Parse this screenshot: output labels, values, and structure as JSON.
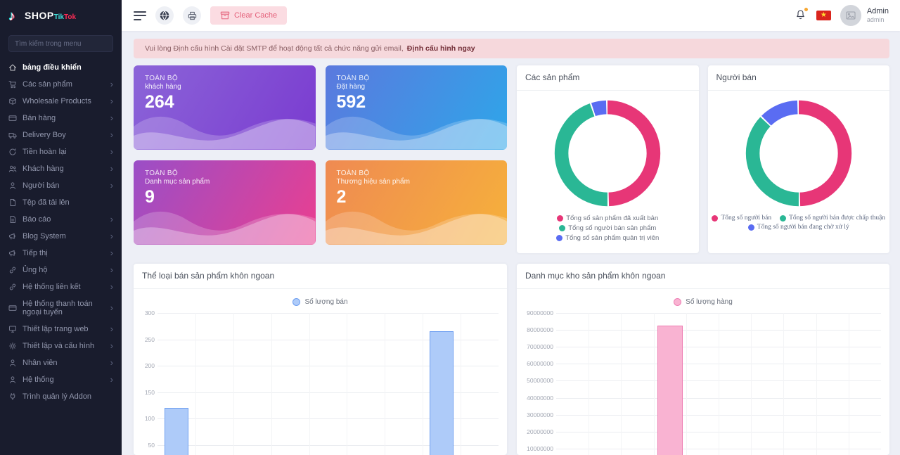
{
  "sidebar": {
    "logo": {
      "shop": "SHOP",
      "tik": "Tik",
      "tok": "Tok"
    },
    "search_placeholder": "Tìm kiếm trong menu",
    "items": [
      {
        "label": "bảng điều khiển",
        "icon": "home",
        "has_children": false,
        "active": true
      },
      {
        "label": "Các sản phẩm",
        "icon": "cart",
        "has_children": true,
        "active": false
      },
      {
        "label": "Wholesale Products",
        "icon": "box",
        "has_children": true,
        "active": false
      },
      {
        "label": "Bán hàng",
        "icon": "credit-card",
        "has_children": true,
        "active": false
      },
      {
        "label": "Delivery Boy",
        "icon": "truck",
        "has_children": true,
        "active": false
      },
      {
        "label": "Tiền hoàn lại",
        "icon": "refund",
        "has_children": true,
        "active": false
      },
      {
        "label": "Khách hàng",
        "icon": "users",
        "has_children": true,
        "active": false
      },
      {
        "label": "Người bán",
        "icon": "user",
        "has_children": true,
        "active": false
      },
      {
        "label": "Tệp đã tải lên",
        "icon": "file",
        "has_children": false,
        "active": false
      },
      {
        "label": "Báo cáo",
        "icon": "report",
        "has_children": true,
        "active": false
      },
      {
        "label": "Blog System",
        "icon": "megaphone",
        "has_children": true,
        "active": false
      },
      {
        "label": "Tiếp thị",
        "icon": "megaphone",
        "has_children": true,
        "active": false
      },
      {
        "label": "Ủng hộ",
        "icon": "link",
        "has_children": true,
        "active": false
      },
      {
        "label": "Hệ thống liên kết",
        "icon": "link",
        "has_children": true,
        "active": false
      },
      {
        "label": "Hệ thống thanh toán ngoại tuyến",
        "icon": "credit-card",
        "has_children": true,
        "active": false
      },
      {
        "label": "Thiết lập trang web",
        "icon": "monitor",
        "has_children": true,
        "active": false
      },
      {
        "label": "Thiết lập và cấu hình",
        "icon": "gear",
        "has_children": true,
        "active": false
      },
      {
        "label": "Nhân viên",
        "icon": "user",
        "has_children": true,
        "active": false
      },
      {
        "label": "Hệ thống",
        "icon": "user",
        "has_children": true,
        "active": false
      },
      {
        "label": "Trình quản lý Addon",
        "icon": "plug",
        "has_children": false,
        "active": false
      }
    ]
  },
  "topbar": {
    "clear_cache_label": "Clear Cache",
    "user": {
      "name": "Admin",
      "role": "admin"
    }
  },
  "alert": {
    "message": "Vui lòng Định cấu hình Cài đặt SMTP để hoạt động tất cả chức năng gửi email,",
    "action": "Định cấu hình ngay"
  },
  "stat_cards": [
    {
      "kicker": "TOÀN BỘ",
      "label": "khách hàng",
      "value": "264",
      "gradient_from": "#8b64d8",
      "gradient_to": "#7a3bd0"
    },
    {
      "kicker": "TOÀN BỘ",
      "label": "Đặt hàng",
      "value": "592",
      "gradient_from": "#5b79de",
      "gradient_to": "#2ea6e9"
    },
    {
      "kicker": "TOÀN BỘ",
      "label": "Danh mục sản phẩm",
      "value": "9",
      "gradient_from": "#9a4ec7",
      "gradient_to": "#ea3f90"
    },
    {
      "kicker": "TOÀN BỘ",
      "label": "Thương hiệu sản phẩm",
      "value": "2",
      "gradient_from": "#ef8a52",
      "gradient_to": "#f6b13b"
    }
  ],
  "chart_data": [
    {
      "type": "pie",
      "subtype": "donut",
      "title": "Các sản phẩm",
      "legend_position": "bottom",
      "slices": [
        {
          "label": "Tổng số sản phẩm đã xuất bản",
          "value": 50,
          "color": "#e73677"
        },
        {
          "label": "Tổng số người bán sản phẩm",
          "value": 45,
          "color": "#2ab795"
        },
        {
          "label": "Tổng số sản phẩm quản trị viên",
          "value": 5,
          "color": "#5a6cf2"
        }
      ],
      "legend_rows": [
        [
          0
        ],
        [
          1
        ],
        [
          2
        ]
      ]
    },
    {
      "type": "pie",
      "subtype": "donut",
      "title": "Người bán",
      "legend_position": "bottom",
      "legend_font": "serif",
      "slices": [
        {
          "label": "Tổng số người bán",
          "value": 50,
          "color": "#e73677"
        },
        {
          "label": "Tổng số người bán được chấp thuận",
          "value": 37.5,
          "color": "#2ab795"
        },
        {
          "label": "Tổng số người bán đang chờ xử lý",
          "value": 12.5,
          "color": "#5a6cf2"
        }
      ],
      "legend_rows": [
        [
          0,
          1
        ],
        [
          2
        ]
      ]
    },
    {
      "type": "bar",
      "title": "Thể loại bán sản phẩm khôn ngoan",
      "legend_position": "top",
      "grid": true,
      "series": [
        {
          "name": "Số lượng bán",
          "values": [
            120,
            0,
            0,
            0,
            0,
            0,
            0,
            265,
            0
          ]
        }
      ],
      "ylim": [
        0,
        300
      ],
      "yticks": [
        300,
        250,
        200,
        150,
        100,
        50
      ],
      "bar_fill": "#aecbf9",
      "bar_border": "#6d9ef0",
      "xlabel": "",
      "ylabel": ""
    },
    {
      "type": "bar",
      "title": "Danh mục kho sản phẩm khôn ngoan",
      "legend_position": "top",
      "grid": true,
      "series": [
        {
          "name": "Số lượng hàng",
          "values": [
            0,
            0,
            0,
            82500000,
            0,
            0,
            0,
            0,
            0,
            0
          ]
        }
      ],
      "ylim": [
        0,
        90000000
      ],
      "yticks": [
        90000000,
        80000000,
        70000000,
        60000000,
        50000000,
        40000000,
        30000000,
        20000000,
        10000000
      ],
      "bar_fill": "#f9b3d2",
      "bar_border": "#ee7fb4",
      "xlabel": "",
      "ylabel": ""
    }
  ]
}
